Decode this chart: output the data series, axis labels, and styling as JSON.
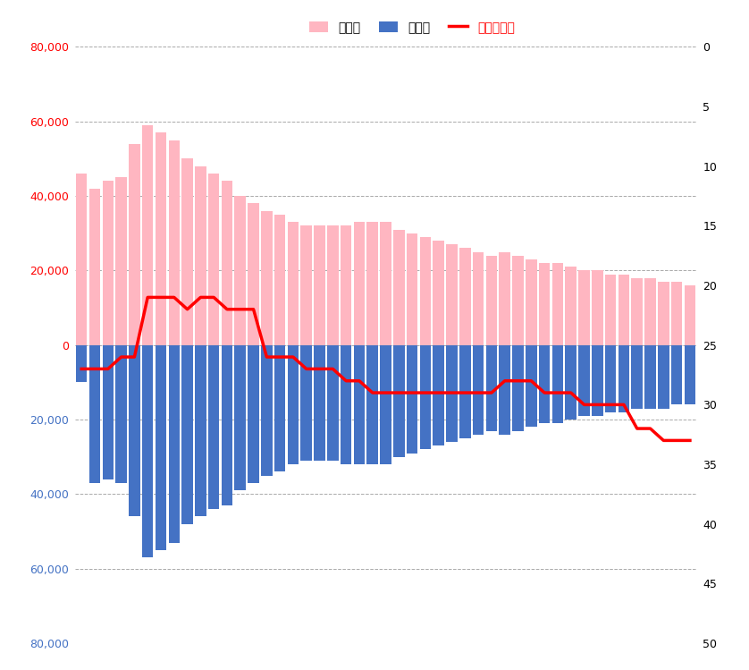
{
  "girls": [
    46000,
    42000,
    44000,
    45000,
    54000,
    59000,
    57000,
    55000,
    50000,
    48000,
    46000,
    44000,
    40000,
    38000,
    36000,
    35000,
    33000,
    32000,
    32000,
    32000,
    32000,
    33000,
    33000,
    33000,
    31000,
    30000,
    29000,
    28000,
    27000,
    26000,
    25000,
    24000,
    25000,
    24000,
    23000,
    22000,
    22000,
    21000,
    20000,
    20000,
    19000,
    19000,
    18000,
    18000,
    17000,
    17000,
    16000
  ],
  "boys": [
    -10000,
    -37000,
    -36000,
    -37000,
    -46000,
    -57000,
    -55000,
    -53000,
    -48000,
    -46000,
    -44000,
    -43000,
    -39000,
    -37000,
    -35000,
    -34000,
    -32000,
    -31000,
    -31000,
    -31000,
    -32000,
    -32000,
    -32000,
    -32000,
    -30000,
    -29000,
    -28000,
    -27000,
    -26000,
    -25000,
    -24000,
    -23000,
    -24000,
    -23000,
    -22000,
    -21000,
    -21000,
    -20000,
    -19000,
    -19000,
    -18000,
    -18000,
    -17000,
    -17000,
    -17000,
    -16000,
    -16000
  ],
  "ranking": [
    27,
    27,
    27,
    26,
    26,
    21,
    21,
    21,
    22,
    21,
    21,
    22,
    22,
    22,
    26,
    26,
    26,
    27,
    27,
    27,
    28,
    28,
    29,
    29,
    29,
    29,
    29,
    29,
    29,
    29,
    29,
    29,
    28,
    28,
    28,
    29,
    29,
    29,
    30,
    30,
    30,
    30,
    32,
    32,
    33,
    33,
    33
  ],
  "n_bars": 47,
  "ylim": [
    -80000,
    80000
  ],
  "yticks_left": [
    -80000,
    -60000,
    -40000,
    -20000,
    0,
    20000,
    40000,
    60000,
    80000
  ],
  "ylim_right": [
    50,
    0
  ],
  "yticks_right": [
    0,
    5,
    10,
    15,
    20,
    25,
    30,
    35,
    40,
    45,
    50
  ],
  "bar_color_girls": "#FFB6C1",
  "bar_color_boys": "#4472C4",
  "line_color": "#FF0000",
  "grid_color": "#AAAAAA",
  "bg_color": "#FFFFFF",
  "legend_girls": "女の子",
  "legend_boys": "男の子",
  "legend_ranking": "ランキング",
  "left_label_color_pos": "#FF0000",
  "left_label_color_neg": "#4472C4",
  "right_label_color": "#000000"
}
